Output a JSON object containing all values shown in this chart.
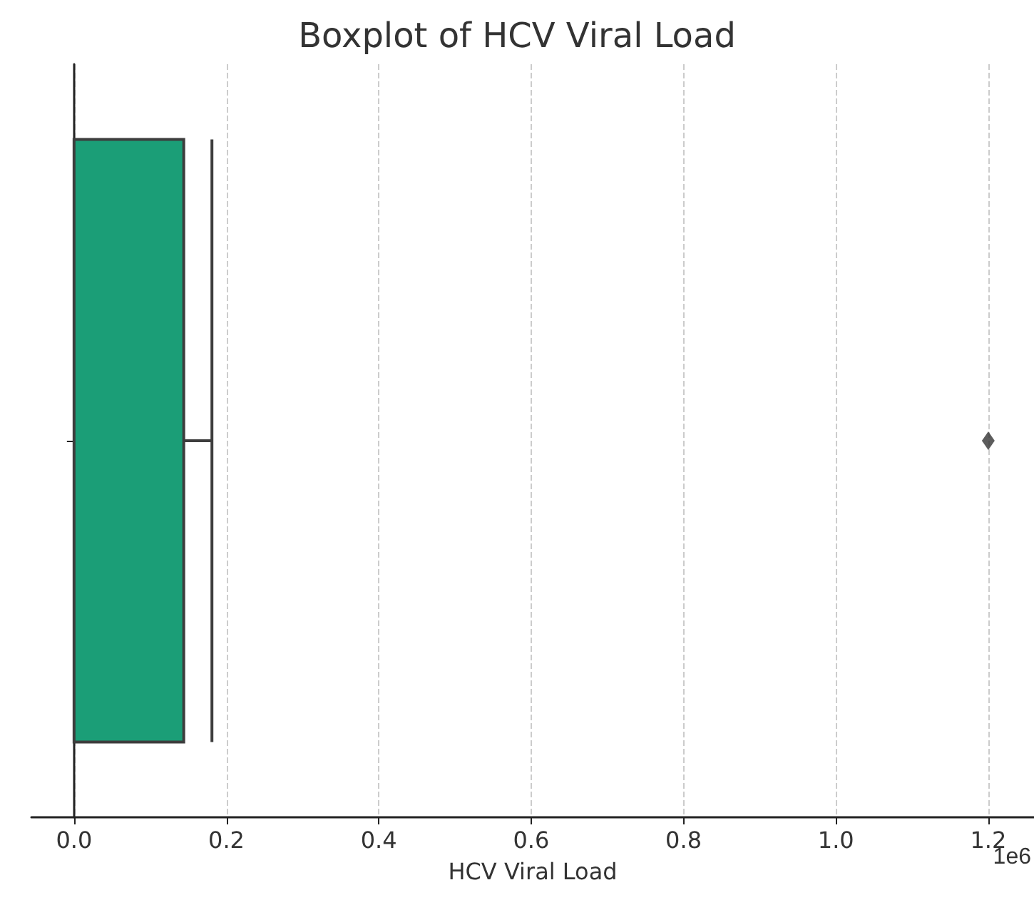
{
  "chart_data": {
    "type": "box",
    "title": "Boxplot of HCV Viral Load",
    "xlabel": "HCV Viral Load",
    "orientation": "horizontal",
    "categories": [
      null
    ],
    "boxes": [
      {
        "low": 0,
        "q1": 0,
        "median": 0,
        "q3": 0.144,
        "high": 0.181,
        "outliers": [
          1.2
        ]
      }
    ],
    "color": "#1b9e77",
    "xlim": [
      -0.056,
      1.26
    ],
    "xticks": [
      {
        "value": 0,
        "label": "0.0"
      },
      0.2,
      0.4,
      0.6,
      0.8,
      {
        "value": 1,
        "label": "1.0"
      },
      1.2
    ],
    "annotations": [
      "1e6"
    ],
    "grid": "x",
    "tick_labels": "x"
  }
}
